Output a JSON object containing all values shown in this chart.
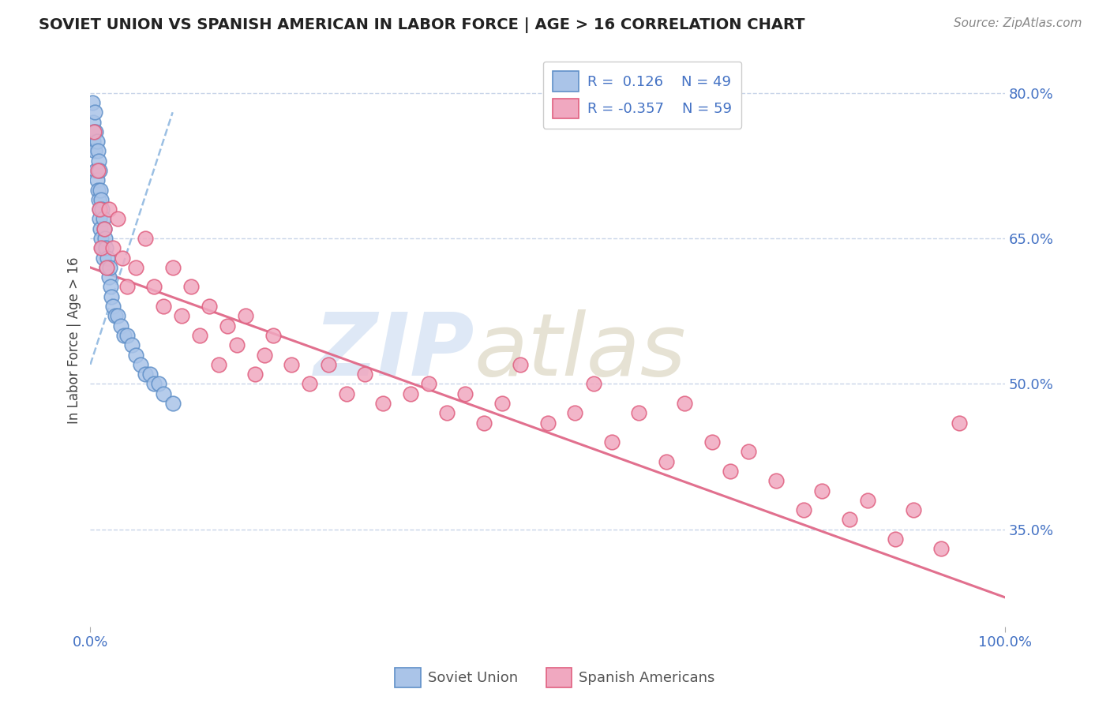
{
  "title": "SOVIET UNION VS SPANISH AMERICAN IN LABOR FORCE | AGE > 16 CORRELATION CHART",
  "source_text": "Source: ZipAtlas.com",
  "ylabel": "In Labor Force | Age > 16",
  "xlim": [
    0,
    100
  ],
  "ylim": [
    25,
    84
  ],
  "ytick_vals": [
    35.0,
    50.0,
    65.0,
    80.0
  ],
  "ytick_labels": [
    "35.0%",
    "50.0%",
    "65.0%",
    "80.0%"
  ],
  "xtick_vals": [
    0,
    100
  ],
  "xtick_labels": [
    "0.0%",
    "100.0%"
  ],
  "grid_color": "#c8d4e8",
  "background_color": "#ffffff",
  "soviet_color": "#aac4e8",
  "spanish_color": "#f0a8c0",
  "soviet_edge": "#6090c8",
  "spanish_edge": "#e06080",
  "trend_blue_color": "#90b8e0",
  "trend_pink_color": "#e06888",
  "watermark_zip_color": "#c8daf0",
  "watermark_atlas_color": "#c8c0a0",
  "legend_label_color": "#4472c4",
  "tick_color": "#4472c4",
  "ylabel_color": "#444444",
  "title_color": "#222222",
  "source_color": "#888888",
  "soviet_x": [
    0.2,
    0.3,
    0.3,
    0.4,
    0.5,
    0.5,
    0.6,
    0.6,
    0.7,
    0.7,
    0.8,
    0.8,
    0.9,
    0.9,
    1.0,
    1.0,
    1.0,
    1.1,
    1.1,
    1.2,
    1.2,
    1.3,
    1.3,
    1.4,
    1.4,
    1.5,
    1.6,
    1.7,
    1.8,
    1.9,
    2.0,
    2.1,
    2.2,
    2.3,
    2.5,
    2.7,
    3.0,
    3.3,
    3.7,
    4.0,
    4.5,
    5.0,
    5.5,
    6.0,
    6.5,
    7.0,
    7.5,
    8.0,
    9.0
  ],
  "soviet_y": [
    79,
    77,
    75,
    76,
    78,
    74,
    76,
    72,
    75,
    71,
    74,
    70,
    73,
    69,
    72,
    68,
    67,
    70,
    66,
    69,
    65,
    68,
    64,
    67,
    63,
    66,
    65,
    64,
    62,
    63,
    61,
    62,
    60,
    59,
    58,
    57,
    57,
    56,
    55,
    55,
    54,
    53,
    52,
    51,
    51,
    50,
    50,
    49,
    48
  ],
  "spanish_x": [
    0.4,
    0.8,
    1.0,
    1.2,
    1.5,
    1.8,
    2.0,
    2.5,
    3.0,
    3.5,
    4.0,
    5.0,
    6.0,
    7.0,
    8.0,
    9.0,
    10.0,
    11.0,
    12.0,
    13.0,
    14.0,
    15.0,
    16.0,
    17.0,
    18.0,
    19.0,
    20.0,
    22.0,
    24.0,
    26.0,
    28.0,
    30.0,
    32.0,
    35.0,
    37.0,
    39.0,
    41.0,
    43.0,
    45.0,
    47.0,
    50.0,
    53.0,
    55.0,
    57.0,
    60.0,
    63.0,
    65.0,
    68.0,
    70.0,
    72.0,
    75.0,
    78.0,
    80.0,
    83.0,
    85.0,
    88.0,
    90.0,
    93.0,
    95.0
  ],
  "spanish_y": [
    76,
    72,
    68,
    64,
    66,
    62,
    68,
    64,
    67,
    63,
    60,
    62,
    65,
    60,
    58,
    62,
    57,
    60,
    55,
    58,
    52,
    56,
    54,
    57,
    51,
    53,
    55,
    52,
    50,
    52,
    49,
    51,
    48,
    49,
    50,
    47,
    49,
    46,
    48,
    52,
    46,
    47,
    50,
    44,
    47,
    42,
    48,
    44,
    41,
    43,
    40,
    37,
    39,
    36,
    38,
    34,
    37,
    33,
    46
  ],
  "trend_blue_x0": 0,
  "trend_blue_x1": 9,
  "trend_blue_y0": 52,
  "trend_blue_y1": 78,
  "trend_pink_x0": 0,
  "trend_pink_x1": 100,
  "trend_pink_y0": 62,
  "trend_pink_y1": 28
}
